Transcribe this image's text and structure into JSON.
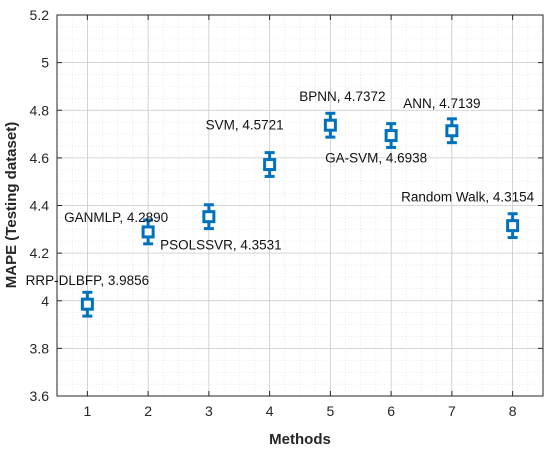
{
  "colors": {
    "marker": "#0072BD",
    "axis": "#262626",
    "grid": "#c8c8c8",
    "minor_grid": "#e4e4e4"
  },
  "chart_data": {
    "type": "scatter",
    "title": "",
    "xlabel": "Methods",
    "ylabel": "MAPE (Testing dataset)",
    "xlim": [
      0.5,
      8.5
    ],
    "ylim": [
      3.6,
      5.2
    ],
    "xticks": [
      "1",
      "2",
      "3",
      "4",
      "5",
      "6",
      "7",
      "8"
    ],
    "yticks": [
      "3.6",
      "3.8",
      "4",
      "4.2",
      "4.4",
      "4.6",
      "4.8",
      "5",
      "5.2"
    ],
    "grid": true,
    "minor_grid": true,
    "marker": "square",
    "error_bar": 0.05,
    "points": [
      {
        "x": 1,
        "y": 3.9856,
        "label": "RRP-DLBFP, 3.9856"
      },
      {
        "x": 2,
        "y": 4.289,
        "label": "GANMLP, 4.2890"
      },
      {
        "x": 3,
        "y": 4.3531,
        "label": "PSOLSSVR, 4.3531"
      },
      {
        "x": 4,
        "y": 4.5721,
        "label": "SVM, 4.5721"
      },
      {
        "x": 5,
        "y": 4.7372,
        "label": "BPNN, 4.7372"
      },
      {
        "x": 6,
        "y": 4.6938,
        "label": "GA-SVM, 4.6938"
      },
      {
        "x": 7,
        "y": 4.7139,
        "label": "ANN, 4.7139"
      },
      {
        "x": 8,
        "y": 4.3154,
        "label": "Random Walk, 4.3154"
      }
    ]
  }
}
